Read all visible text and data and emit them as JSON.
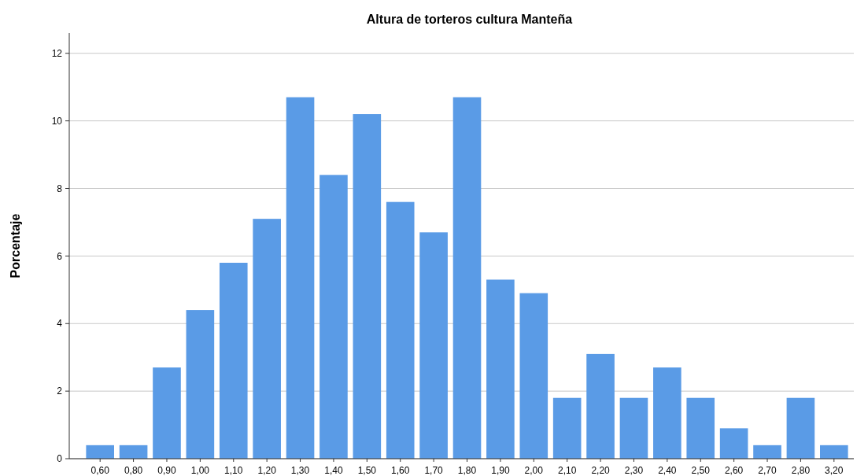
{
  "chart_data": {
    "type": "bar",
    "title": "Altura de torteros cultura Manteña",
    "ylabel": "Porcentaje",
    "categories": [
      "0,60",
      "0,80",
      "0,90",
      "1,00",
      "1,10",
      "1,20",
      "1,30",
      "1,40",
      "1,50",
      "1,60",
      "1,70",
      "1,80",
      "1,90",
      "2,00",
      "2,10",
      "2,20",
      "2,30",
      "2,40",
      "2,50",
      "2,60",
      "2,70",
      "2,80",
      "3,20"
    ],
    "values": [
      0.4,
      0.4,
      2.7,
      4.4,
      5.8,
      7.1,
      10.7,
      8.4,
      10.2,
      7.6,
      6.7,
      10.7,
      5.3,
      4.9,
      1.8,
      3.1,
      1.8,
      2.7,
      1.8,
      0.9,
      0.4,
      1.8,
      0.4
    ],
    "color": "#5a9be6",
    "ylim": [
      0,
      12.6
    ],
    "yticks": [
      0,
      2,
      4,
      6,
      8,
      10,
      12
    ],
    "grid": "y"
  }
}
